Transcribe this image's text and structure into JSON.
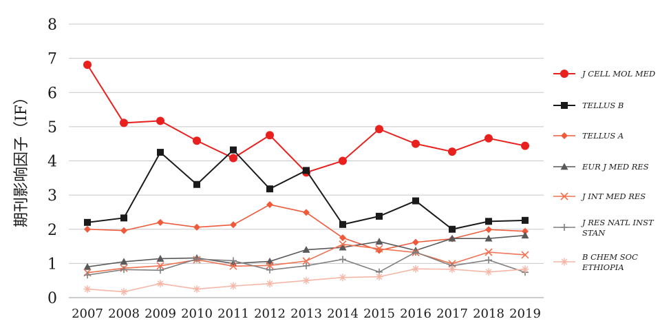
{
  "chart_data": {
    "type": "line",
    "title": "",
    "xlabel": "",
    "ylabel": "期刊影响因子（IF）",
    "ylim": [
      0,
      8
    ],
    "yticks": [
      "0",
      "1",
      "2",
      "3",
      "4",
      "5",
      "6",
      "7",
      "8"
    ],
    "grid": true,
    "legend_position": "right",
    "categories": [
      "2007",
      "2008",
      "2009",
      "2010",
      "2011",
      "2012",
      "2013",
      "2014",
      "2015",
      "2016",
      "2017",
      "2018",
      "2019"
    ],
    "series": [
      {
        "name": "J CELL MOL MED",
        "name_lines": [
          "J CELL MOL MED"
        ],
        "color": "#e8211e",
        "marker": "circle",
        "values": [
          6.81,
          5.11,
          5.17,
          4.59,
          4.08,
          4.75,
          3.66,
          4.0,
          4.93,
          4.5,
          4.27,
          4.66,
          4.44
        ]
      },
      {
        "name": "TELLUS B",
        "name_lines": [
          "TELLUS B"
        ],
        "color": "#1a1a1a",
        "marker": "square",
        "values": [
          2.2,
          2.33,
          4.25,
          3.31,
          4.32,
          3.18,
          3.72,
          2.14,
          2.38,
          2.83,
          2.0,
          2.23,
          2.26
        ]
      },
      {
        "name": "TELLUS A",
        "name_lines": [
          "TELLUS A"
        ],
        "color": "#ee5a3a",
        "marker": "diamond",
        "values": [
          2.0,
          1.96,
          2.2,
          2.06,
          2.13,
          2.72,
          2.49,
          1.75,
          1.38,
          1.62,
          1.72,
          1.99,
          1.94
        ]
      },
      {
        "name": "EUR J MED RES",
        "name_lines": [
          "EUR J MED RES"
        ],
        "color": "#595959",
        "marker": "triangle",
        "values": [
          0.9,
          1.05,
          1.14,
          1.16,
          1.0,
          1.06,
          1.4,
          1.47,
          1.64,
          1.38,
          1.73,
          1.73,
          1.82
        ]
      },
      {
        "name": "J INT MED RES",
        "name_lines": [
          "J INT MED RES"
        ],
        "color": "#f0704f",
        "marker": "x",
        "values": [
          0.73,
          0.86,
          0.93,
          1.11,
          0.92,
          0.94,
          1.07,
          1.56,
          1.43,
          1.32,
          0.99,
          1.33,
          1.25
        ]
      },
      {
        "name": "J RES NATL INST STAN",
        "name_lines": [
          "J RES NATL INST",
          "STAN"
        ],
        "color": "#7f7f7f",
        "marker": "plus",
        "values": [
          0.66,
          0.82,
          0.8,
          1.13,
          1.08,
          0.81,
          0.93,
          1.12,
          0.75,
          1.33,
          0.93,
          1.1,
          0.74
        ]
      },
      {
        "name": "B CHEM SOC ETHIOPIA",
        "name_lines": [
          "B CHEM SOC",
          "ETHIOPIA"
        ],
        "color": "#f6b6a6",
        "marker": "star",
        "values": [
          0.25,
          0.17,
          0.41,
          0.25,
          0.34,
          0.41,
          0.5,
          0.59,
          0.61,
          0.84,
          0.83,
          0.75,
          0.83
        ]
      }
    ]
  }
}
